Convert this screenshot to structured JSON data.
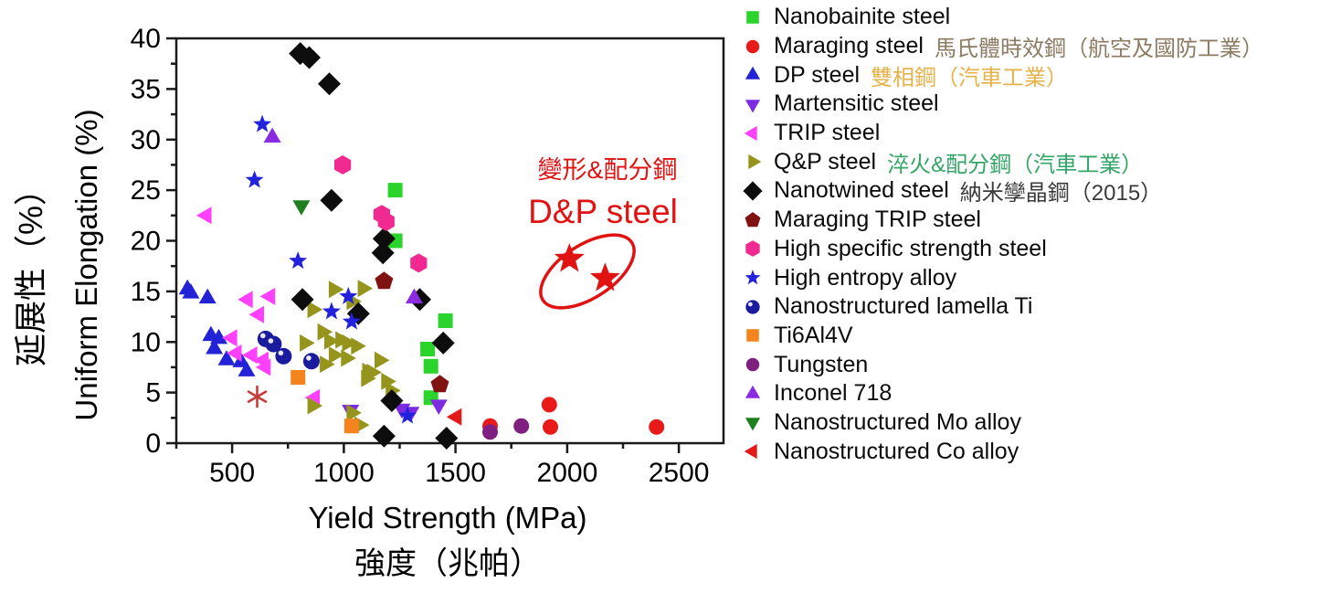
{
  "annotation": {
    "label_zh": "變形&配分鋼",
    "label_en": "D&P steel",
    "color": "#e01212"
  },
  "chart_data": {
    "type": "scatter",
    "title": "",
    "xlabel": "Yield Strength (MPa)",
    "xlabel_zh": "強度（兆帕）",
    "ylabel": "Uniform Elongation (%)",
    "ylabel_zh": "延展性（%）",
    "xlim": [
      250,
      2700
    ],
    "ylim": [
      0,
      40
    ],
    "x_major_ticks": [
      500,
      1000,
      1500,
      2000,
      2500
    ],
    "x_minor_step": 250,
    "y_major_step": 5,
    "y_minor_step": 2.5,
    "grid": false,
    "legend_position": "right",
    "series": [
      {
        "name": "Nanobainite steel",
        "marker": "square",
        "color": "#2bd42b",
        "points": [
          [
            1230,
            25.0
          ],
          [
            1230,
            20.0
          ],
          [
            1455,
            12.1
          ],
          [
            1375,
            9.3
          ],
          [
            1390,
            7.6
          ],
          [
            1390,
            4.5
          ]
        ]
      },
      {
        "name": "Maraging steel",
        "marker": "circle",
        "color": "#e81a1a",
        "suffix": "馬氏體時效鋼（航空及國防工業）",
        "suffix_color": "#8c7a62",
        "points": [
          [
            1655,
            1.7
          ],
          [
            1920,
            3.8
          ],
          [
            1925,
            1.6
          ],
          [
            2400,
            1.6
          ]
        ]
      },
      {
        "name": "DP steel",
        "marker": "triangle-up",
        "color": "#2222d6",
        "suffix": "雙相鋼（汽車工業）",
        "suffix_color": "#e6b34a",
        "points": [
          [
            300,
            15.2
          ],
          [
            315,
            14.8
          ],
          [
            390,
            14.3
          ],
          [
            405,
            10.6
          ],
          [
            440,
            10.3
          ],
          [
            420,
            9.3
          ],
          [
            475,
            8.2
          ],
          [
            540,
            8.0
          ],
          [
            565,
            7.1
          ]
        ]
      },
      {
        "name": "Martensitic steel",
        "marker": "triangle-down",
        "color": "#7d2be0",
        "points": [
          [
            1030,
            3.3
          ],
          [
            1260,
            3.4
          ],
          [
            1300,
            3.1
          ],
          [
            1425,
            3.8
          ]
        ]
      },
      {
        "name": "TRIP steel",
        "marker": "triangle-left",
        "color": "#ff40ff",
        "points": [
          [
            385,
            22.5
          ],
          [
            570,
            14.2
          ],
          [
            670,
            14.5
          ],
          [
            620,
            12.7
          ],
          [
            500,
            10.4
          ],
          [
            520,
            8.9
          ],
          [
            590,
            8.7
          ],
          [
            640,
            8.2
          ],
          [
            650,
            7.5
          ],
          [
            870,
            4.5
          ]
        ]
      },
      {
        "name": "Q&P steel",
        "marker": "triangle-right",
        "color": "#95951e",
        "suffix": "淬火&配分鋼（汽車工業）",
        "suffix_color": "#33a667",
        "points": [
          [
            955,
            15.2
          ],
          [
            1085,
            15.3
          ],
          [
            1035,
            14.0
          ],
          [
            860,
            13.2
          ],
          [
            905,
            11.0
          ],
          [
            825,
            9.9
          ],
          [
            935,
            10.1
          ],
          [
            985,
            10.2
          ],
          [
            1015,
            9.9
          ],
          [
            1055,
            9.6
          ],
          [
            955,
            8.7
          ],
          [
            1010,
            8.4
          ],
          [
            915,
            7.8
          ],
          [
            1160,
            8.2
          ],
          [
            1105,
            7.1
          ],
          [
            1125,
            7.0
          ],
          [
            1100,
            6.4
          ],
          [
            1190,
            6.1
          ],
          [
            1210,
            5.2
          ],
          [
            1035,
            3.0
          ],
          [
            860,
            3.7
          ],
          [
            1070,
            1.8
          ]
        ]
      },
      {
        "name": "Nanotwined steel",
        "marker": "diamond",
        "color": "#0d0d0d",
        "suffix": "納米孿晶鋼（2015）",
        "suffix_color": "#3a3a3a",
        "points": [
          [
            805,
            38.5
          ],
          [
            845,
            38.1
          ],
          [
            935,
            35.5
          ],
          [
            945,
            24.0
          ],
          [
            1180,
            20.2
          ],
          [
            1175,
            18.8
          ],
          [
            815,
            14.2
          ],
          [
            1340,
            14.2
          ],
          [
            1065,
            12.8
          ],
          [
            1445,
            9.9
          ],
          [
            1215,
            4.2
          ],
          [
            1180,
            0.7
          ],
          [
            1460,
            0.5
          ]
        ]
      },
      {
        "name": "Maraging TRIP steel",
        "marker": "pentagon",
        "color": "#801212",
        "points": [
          [
            1180,
            16.0
          ],
          [
            1430,
            5.8
          ]
        ]
      },
      {
        "name": "High specific strength steel",
        "marker": "hexagon",
        "color": "#f02a90",
        "points": [
          [
            995,
            27.5
          ],
          [
            1170,
            22.6
          ],
          [
            1190,
            21.9
          ],
          [
            1335,
            17.8
          ]
        ]
      },
      {
        "name": "High entropy alloy",
        "marker": "star",
        "color": "#2222dd",
        "points": [
          [
            635,
            31.5
          ],
          [
            600,
            26.0
          ],
          [
            795,
            18.0
          ],
          [
            1020,
            14.5
          ],
          [
            945,
            13.0
          ],
          [
            1035,
            12.0
          ],
          [
            1285,
            2.7
          ]
        ]
      },
      {
        "name": "Nanostructured lamella Ti",
        "marker": "sphere",
        "color": "#1b1b9e",
        "points": [
          [
            650,
            10.3
          ],
          [
            685,
            9.8
          ],
          [
            730,
            8.6
          ],
          [
            855,
            8.1
          ]
        ]
      },
      {
        "name": "Ti6Al4V",
        "marker": "square",
        "color": "#f5841e",
        "points": [
          [
            795,
            6.5
          ],
          [
            1035,
            1.7
          ]
        ]
      },
      {
        "name": "Tungsten",
        "marker": "circle",
        "color": "#7f1f7f",
        "points": [
          [
            1655,
            1.1
          ],
          [
            1795,
            1.7
          ]
        ]
      },
      {
        "name": "Inconel 718",
        "marker": "triangle-up",
        "color": "#8a2be2",
        "points": [
          [
            680,
            30.2
          ],
          [
            1315,
            14.3
          ]
        ]
      },
      {
        "name": "Nanostructured Mo alloy",
        "marker": "triangle-down",
        "color": "#1f7f1f",
        "points": [
          [
            810,
            23.5
          ]
        ]
      },
      {
        "name": "Nanostructured Co alloy",
        "marker": "triangle-left",
        "color": "#e31a1a",
        "points": [
          [
            1505,
            2.6
          ]
        ]
      },
      {
        "name": "D&P steel",
        "marker": "star",
        "color": "#e01212",
        "size": 1.65,
        "in_legend": false,
        "points": [
          [
            2010,
            18.2
          ],
          [
            2170,
            16.3
          ]
        ]
      },
      {
        "name": "reference asterisk",
        "marker": "asterisk",
        "color": "#c43c3c",
        "in_legend": false,
        "points": [
          [
            612,
            4.6
          ]
        ]
      }
    ]
  }
}
